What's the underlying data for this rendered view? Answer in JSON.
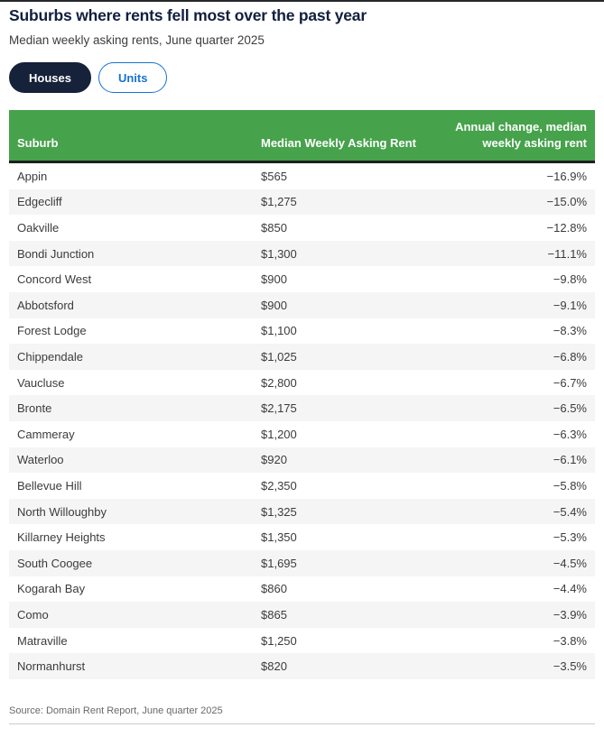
{
  "page": {
    "title": "Suburbs where rents fell most over the past year",
    "subtitle": "Median weekly asking rents, June quarter 2025",
    "source": "Source: Domain Rent Report, June quarter 2025"
  },
  "toggle": {
    "houses_label": "Houses",
    "units_label": "Units",
    "selected": "Houses"
  },
  "colors": {
    "header_green": "#46a24b",
    "navy": "#16223a",
    "blue": "#1573d2",
    "row_alt_gray": "#f5f5f5"
  },
  "chart_data": {
    "type": "table",
    "title": "Suburbs where rents fell most over the past year",
    "subtitle": "Median weekly asking rents, June quarter 2025",
    "source": "Source: Domain Rent Report, June quarter 2025",
    "columns": [
      "Suburb",
      "Median Weekly Asking Rent",
      "Annual change, median weekly asking rent"
    ],
    "rows": [
      {
        "suburb": "Appin",
        "rent": "$565",
        "rent_value": 565,
        "change": "−16.9%",
        "change_pct": -16.9
      },
      {
        "suburb": "Edgecliff",
        "rent": "$1,275",
        "rent_value": 1275,
        "change": "−15.0%",
        "change_pct": -15.0
      },
      {
        "suburb": "Oakville",
        "rent": "$850",
        "rent_value": 850,
        "change": "−12.8%",
        "change_pct": -12.8
      },
      {
        "suburb": "Bondi Junction",
        "rent": "$1,300",
        "rent_value": 1300,
        "change": "−11.1%",
        "change_pct": -11.1
      },
      {
        "suburb": "Concord West",
        "rent": "$900",
        "rent_value": 900,
        "change": "−9.8%",
        "change_pct": -9.8
      },
      {
        "suburb": "Abbotsford",
        "rent": "$900",
        "rent_value": 900,
        "change": "−9.1%",
        "change_pct": -9.1
      },
      {
        "suburb": "Forest Lodge",
        "rent": "$1,100",
        "rent_value": 1100,
        "change": "−8.3%",
        "change_pct": -8.3
      },
      {
        "suburb": "Chippendale",
        "rent": "$1,025",
        "rent_value": 1025,
        "change": "−6.8%",
        "change_pct": -6.8
      },
      {
        "suburb": "Vaucluse",
        "rent": "$2,800",
        "rent_value": 2800,
        "change": "−6.7%",
        "change_pct": -6.7
      },
      {
        "suburb": "Bronte",
        "rent": "$2,175",
        "rent_value": 2175,
        "change": "−6.5%",
        "change_pct": -6.5
      },
      {
        "suburb": "Cammeray",
        "rent": "$1,200",
        "rent_value": 1200,
        "change": "−6.3%",
        "change_pct": -6.3
      },
      {
        "suburb": "Waterloo",
        "rent": "$920",
        "rent_value": 920,
        "change": "−6.1%",
        "change_pct": -6.1
      },
      {
        "suburb": "Bellevue Hill",
        "rent": "$2,350",
        "rent_value": 2350,
        "change": "−5.8%",
        "change_pct": -5.8
      },
      {
        "suburb": "North Willoughby",
        "rent": "$1,325",
        "rent_value": 1325,
        "change": "−5.4%",
        "change_pct": -5.4
      },
      {
        "suburb": "Killarney Heights",
        "rent": "$1,350",
        "rent_value": 1350,
        "change": "−5.3%",
        "change_pct": -5.3
      },
      {
        "suburb": "South Coogee",
        "rent": "$1,695",
        "rent_value": 1695,
        "change": "−4.5%",
        "change_pct": -4.5
      },
      {
        "suburb": "Kogarah Bay",
        "rent": "$860",
        "rent_value": 860,
        "change": "−4.4%",
        "change_pct": -4.4
      },
      {
        "suburb": "Como",
        "rent": "$865",
        "rent_value": 865,
        "change": "−3.9%",
        "change_pct": -3.9
      },
      {
        "suburb": "Matraville",
        "rent": "$1,250",
        "rent_value": 1250,
        "change": "−3.8%",
        "change_pct": -3.8
      },
      {
        "suburb": "Normanhurst",
        "rent": "$820",
        "rent_value": 820,
        "change": "−3.5%",
        "change_pct": -3.5
      }
    ]
  }
}
